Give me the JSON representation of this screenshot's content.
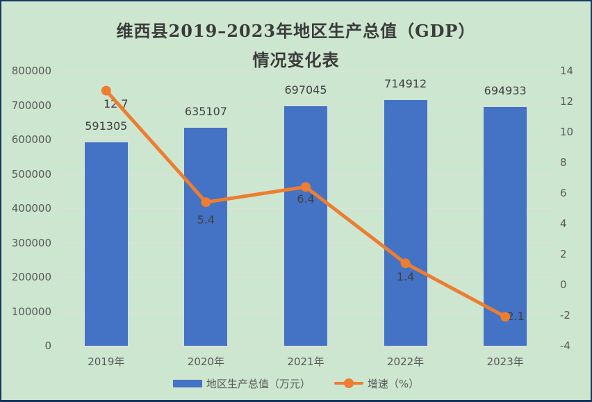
{
  "frame": {
    "background_color": "#CDE6CF",
    "border_color": "#17375E",
    "gridline_color": "#E6DCE1"
  },
  "title": {
    "line1": "维西县2019–2023年地区生产总值（GDP）",
    "line2": "情况变化表"
  },
  "chart_data": {
    "type": "bar+line combo",
    "title": "维西县2019–2023年地区生产总值（GDP）情况变化表",
    "categories": [
      "2019年",
      "2020年",
      "2021年",
      "2022年",
      "2023年"
    ],
    "series": [
      {
        "name": "地区生产总值（万元）",
        "type": "bar",
        "axis": "left",
        "color": "#4472C4",
        "values": [
          591305,
          635107,
          697045,
          714912,
          694933
        ],
        "data_labels": [
          "591305",
          "635107",
          "697045",
          "714912",
          "694933"
        ]
      },
      {
        "name": "增速（%）",
        "type": "line",
        "axis": "right",
        "color": "#ED7D31",
        "values": [
          12.7,
          5.4,
          6.4,
          1.4,
          -2.1
        ],
        "data_labels": [
          "12.7",
          "5.4",
          "6.4",
          "1.4",
          "-2.1"
        ]
      }
    ],
    "left_axis": {
      "min": 0,
      "max": 800000,
      "tick_step": 100000,
      "ticks": [
        800000,
        700000,
        600000,
        500000,
        400000,
        300000,
        200000,
        100000,
        0
      ]
    },
    "right_axis": {
      "min": -4,
      "max": 14,
      "tick_step": 2,
      "ticks": [
        14,
        12,
        10,
        8,
        6,
        4,
        2,
        0,
        -2,
        -4
      ]
    },
    "grid": "horizontal gridlines on, follow left axis",
    "legend_position": "bottom"
  },
  "legend": {
    "items": [
      {
        "label": "地区生产总值（万元）",
        "swatch": "blue-bar",
        "color": "#4472C4"
      },
      {
        "label": "增速（%）",
        "swatch": "orange-line-marker",
        "color": "#ED7D31"
      }
    ]
  },
  "text_colors": {
    "title": "#3B3B3B",
    "axis_ticks": "#595959",
    "data_labels": "#404040"
  }
}
